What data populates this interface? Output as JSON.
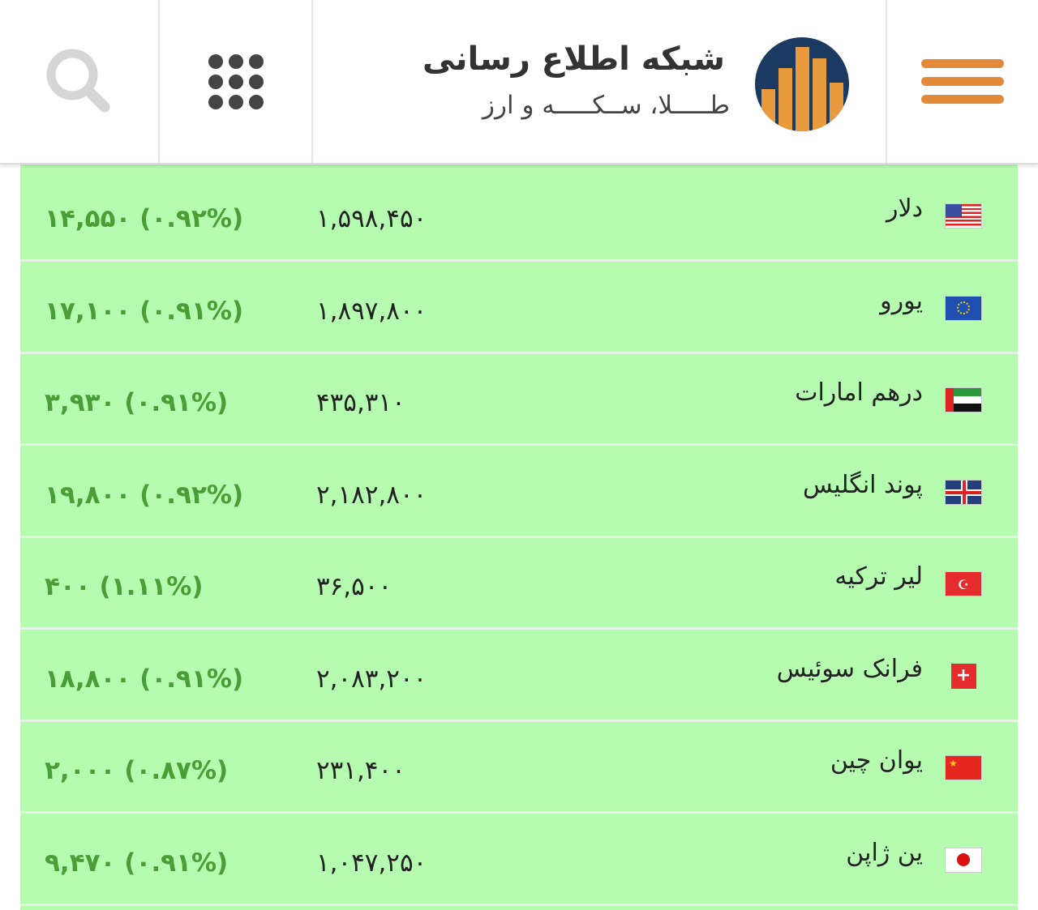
{
  "header": {
    "title": "شبکه اطلاع رسانی",
    "subtitle": "طـــــلا، ســکـــــه و ارز",
    "icons": {
      "menu": "hamburger-icon",
      "logo": "bar-chart-logo",
      "apps": "grid-dots-icon",
      "search": "search-icon"
    },
    "colors": {
      "accent": "#e3893a",
      "logo_bg": "#1b3a61",
      "row_bg": "#b5fcb1",
      "change": "#4a9e35"
    }
  },
  "rates": [
    {
      "name": "دلار",
      "flag": "us",
      "price": "۱,۵۹۸,۴۵۰",
      "change": "۱۴,۵۵۰ (۰.۹۲%)"
    },
    {
      "name": "یورو",
      "flag": "eu",
      "price": "۱,۸۹۷,۸۰۰",
      "change": "۱۷,۱۰۰ (۰.۹۱%)"
    },
    {
      "name": "درهم امارات",
      "flag": "ae",
      "price": "۴۳۵,۳۱۰",
      "change": "۳,۹۳۰ (۰.۹۱%)"
    },
    {
      "name": "پوند انگلیس",
      "flag": "gb",
      "price": "۲,۱۸۲,۸۰۰",
      "change": "۱۹,۸۰۰ (۰.۹۲%)"
    },
    {
      "name": "لیر ترکیه",
      "flag": "tr",
      "price": "۳۶,۵۰۰",
      "change": "۴۰۰ (۱.۱۱%)"
    },
    {
      "name": "فرانک سوئیس",
      "flag": "ch",
      "price": "۲,۰۸۳,۲۰۰",
      "change": "۱۸,۸۰۰ (۰.۹۱%)"
    },
    {
      "name": "یوان چین",
      "flag": "cn",
      "price": "۲۳۱,۴۰۰",
      "change": "۲,۰۰۰ (۰.۸۷%)"
    },
    {
      "name": "ین ژاپن",
      "flag": "jp",
      "price": "۱,۰۴۷,۲۵۰",
      "change": "۹,۴۷۰ (۰.۹۱%)"
    }
  ]
}
